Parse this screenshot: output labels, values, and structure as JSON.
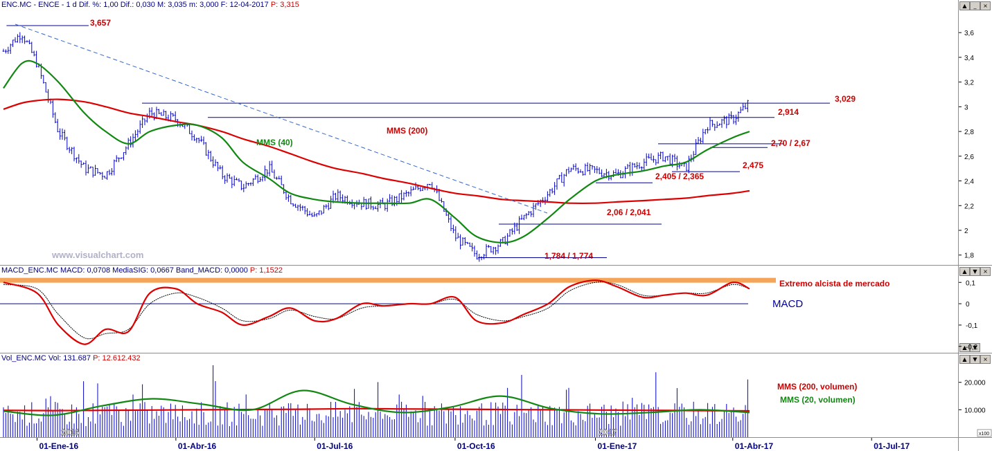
{
  "price_panel": {
    "header": "ENC.MC - ENCE - 1 d Dif. %: 1,00 Dif.: 0,030 M: 3,035 m: 3,000 F: 12-04-2017",
    "header_p": "P: 3,315",
    "watermark": "www.visualchart.com",
    "y_ticks": [
      "3,6",
      "3,4",
      "3,2",
      "3",
      "2,8",
      "2,6",
      "2,4",
      "2,2",
      "2",
      "1,8"
    ],
    "annotations": {
      "max": "3,657",
      "r1": "3,029",
      "r2": "2,914",
      "s1": "2,70 / 2,67",
      "s2": "2,475",
      "s3": "2,405 / 2,365",
      "s4": "2,06 / 2,041",
      "min": "1,784 / 1,774",
      "mms200": "MMS (200)",
      "mms40": "MMS (40)"
    }
  },
  "macd_panel": {
    "header": "MACD_ENC.MC MACD: 0,0708 MediaSIG: 0,0667 Band_MACD: 0,0000",
    "header_p": "P: 1,1522",
    "band_label": "Extremo alcista de mercado",
    "title": "MACD",
    "y_ticks": [
      "0,1",
      "0",
      "-0,1",
      "-0,2"
    ]
  },
  "vol_panel": {
    "header": "Vol_ENC.MC Vol: 131.687",
    "header_p": "P: 12.612.432",
    "legend_200": "MMS (200, volumen)",
    "legend_20": "MMS (20, volumen)",
    "y_ticks": [
      "20.000",
      "10.000"
    ],
    "y_unit": "x100",
    "year_2016": "2016",
    "year_2017": "2017"
  },
  "x_axis": [
    "01-Ene-16",
    "01-Abr-16",
    "01-Jul-16",
    "01-Oct-16",
    "01-Ene-17",
    "01-Abr-17",
    "01-Jul-17"
  ],
  "colors": {
    "price": "#0000cc",
    "mms200": "#dd0000",
    "mms40": "#118811",
    "band": "#f5a55a",
    "annot": "#cc0000",
    "line": "#000099"
  },
  "chart_data": [
    {
      "type": "line",
      "title": "ENC.MC - ENCE daily candlestick",
      "x": [
        "2015-12-10",
        "2015-12-22",
        "2016-01-01",
        "2016-01-15",
        "2016-02-01",
        "2016-02-15",
        "2016-03-01",
        "2016-03-15",
        "2016-04-01",
        "2016-04-15",
        "2016-05-01",
        "2016-05-15",
        "2016-06-01",
        "2016-06-15",
        "2016-07-01",
        "2016-07-15",
        "2016-08-01",
        "2016-08-15",
        "2016-09-01",
        "2016-09-15",
        "2016-10-01",
        "2016-10-15",
        "2016-11-01",
        "2016-11-15",
        "2016-12-01",
        "2016-12-15",
        "2017-01-01",
        "2017-01-15",
        "2017-02-01",
        "2017-02-15",
        "2017-03-01",
        "2017-03-15",
        "2017-04-01",
        "2017-04-12"
      ],
      "series": [
        {
          "name": "Precio",
          "values": [
            3.45,
            3.6,
            3.35,
            2.8,
            2.5,
            2.45,
            2.7,
            2.95,
            2.9,
            2.75,
            2.45,
            2.35,
            2.5,
            2.25,
            2.1,
            2.28,
            2.22,
            2.2,
            2.3,
            2.4,
            1.95,
            1.8,
            1.9,
            2.1,
            2.3,
            2.5,
            2.48,
            2.45,
            2.55,
            2.6,
            2.5,
            2.85,
            2.9,
            3.03
          ]
        },
        {
          "name": "MMS (40)",
          "values": [
            3.15,
            3.35,
            3.35,
            3.2,
            2.95,
            2.8,
            2.7,
            2.8,
            2.85,
            2.85,
            2.75,
            2.55,
            2.42,
            2.3,
            2.25,
            2.23,
            2.22,
            2.22,
            2.22,
            2.25,
            2.1,
            1.95,
            1.9,
            1.95,
            2.1,
            2.25,
            2.4,
            2.45,
            2.48,
            2.52,
            2.55,
            2.65,
            2.75,
            2.8
          ]
        },
        {
          "name": "MMS (200)",
          "values": [
            2.98,
            3.03,
            3.05,
            3.06,
            3.04,
            3.0,
            2.95,
            2.92,
            2.88,
            2.85,
            2.8,
            2.74,
            2.68,
            2.62,
            2.55,
            2.5,
            2.46,
            2.42,
            2.38,
            2.34,
            2.3,
            2.28,
            2.25,
            2.24,
            2.23,
            2.22,
            2.22,
            2.23,
            2.24,
            2.25,
            2.26,
            2.28,
            2.3,
            2.32
          ]
        }
      ],
      "ylim": [
        1.72,
        3.78
      ],
      "annotations": [
        "3,657",
        "3,029",
        "2,914",
        "2,70 / 2,67",
        "2,475",
        "2,405 / 2,365",
        "2,06 / 2,041",
        "1,784 / 1,774"
      ]
    },
    {
      "type": "line",
      "title": "MACD",
      "x": [
        "2015-12-10",
        "2016-01-01",
        "2016-01-15",
        "2016-02-01",
        "2016-02-15",
        "2016-03-01",
        "2016-03-15",
        "2016-04-01",
        "2016-04-15",
        "2016-05-01",
        "2016-05-15",
        "2016-06-01",
        "2016-06-15",
        "2016-07-01",
        "2016-07-15",
        "2016-08-01",
        "2016-08-15",
        "2016-09-01",
        "2016-09-15",
        "2016-10-01",
        "2016-10-15",
        "2016-11-01",
        "2016-11-15",
        "2016-12-01",
        "2016-12-15",
        "2017-01-01",
        "2017-01-15",
        "2017-02-01",
        "2017-02-15",
        "2017-03-01",
        "2017-03-15",
        "2017-04-01",
        "2017-04-12"
      ],
      "series": [
        {
          "name": "MACD",
          "values": [
            0.1,
            0.05,
            -0.1,
            -0.19,
            -0.12,
            -0.13,
            0.05,
            0.07,
            0.0,
            -0.04,
            -0.1,
            -0.06,
            -0.02,
            -0.08,
            -0.07,
            0.0,
            -0.01,
            0.0,
            0.0,
            0.03,
            -0.08,
            -0.09,
            -0.05,
            0.0,
            0.08,
            0.11,
            0.08,
            0.03,
            0.04,
            0.05,
            0.04,
            0.1,
            0.07
          ]
        },
        {
          "name": "MediaSIG",
          "values": [
            0.09,
            0.07,
            -0.05,
            -0.16,
            -0.14,
            -0.12,
            0.0,
            0.05,
            0.03,
            -0.02,
            -0.08,
            -0.07,
            -0.03,
            -0.06,
            -0.07,
            -0.02,
            -0.01,
            0.0,
            0.0,
            0.02,
            -0.05,
            -0.08,
            -0.06,
            -0.02,
            0.06,
            0.1,
            0.09,
            0.04,
            0.04,
            0.05,
            0.05,
            0.09,
            0.07
          ]
        }
      ],
      "band": 0.11,
      "ylim": [
        -0.23,
        0.13
      ]
    },
    {
      "type": "bar",
      "title": "Vol_ENC.MC",
      "x_range": [
        "2015-12-10",
        "2017-04-12"
      ],
      "series": [
        {
          "name": "Volumen",
          "note": "daily bars x100, approx 5.000 - 25.000"
        },
        {
          "name": "MMS (200, volumen)",
          "values": [
            9800,
            9700,
            9800,
            9900,
            10000,
            10100,
            10200,
            10400,
            10300,
            10200,
            10100,
            10000,
            9900,
            9800,
            9700,
            9600
          ]
        },
        {
          "name": "MMS (20, volumen)",
          "values": [
            9500,
            8000,
            11500,
            14000,
            12000,
            10000,
            17000,
            12000,
            9000,
            11000,
            15000,
            10500,
            8500,
            9000,
            10000,
            9000
          ]
        }
      ],
      "y_ticks": [
        10000,
        20000
      ],
      "ylim": [
        0,
        27000
      ]
    }
  ]
}
